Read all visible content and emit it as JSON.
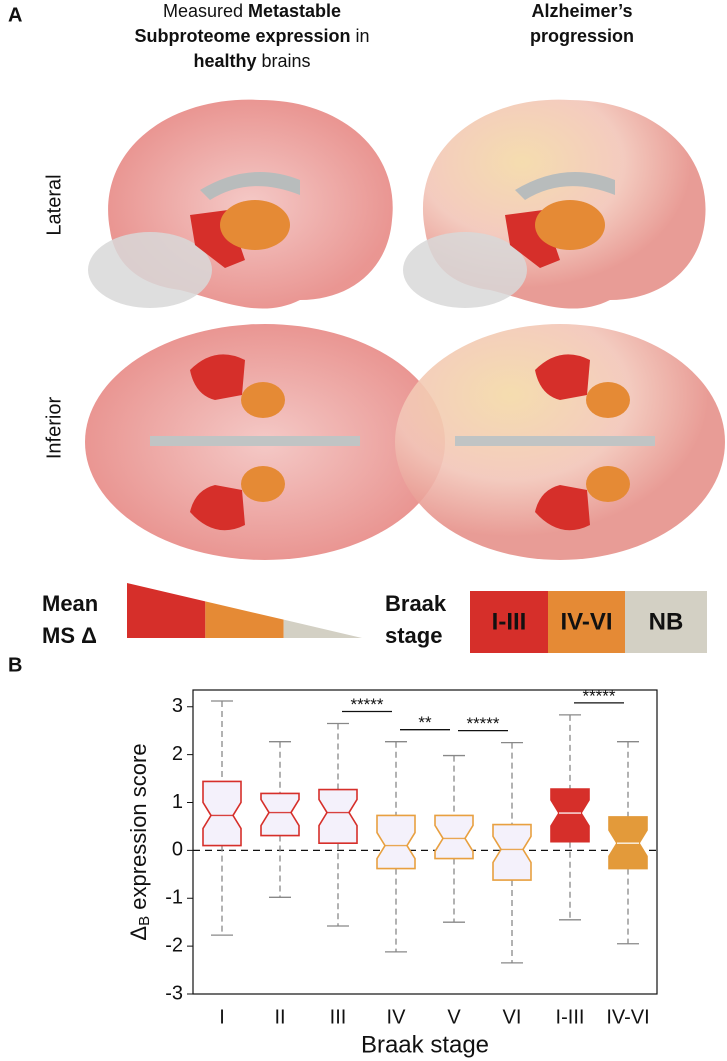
{
  "panel_a": {
    "label": "A",
    "left_title": [
      [
        {
          "text": "Measured ",
          "bold": false
        },
        {
          "text": "Metastable",
          "bold": true
        }
      ],
      [
        {
          "text": "Subproteome expression",
          "bold": true
        },
        {
          "text": " in",
          "bold": false
        }
      ],
      [
        {
          "text": "healthy",
          "bold": true
        },
        {
          "text": " brains",
          "bold": false
        }
      ]
    ],
    "right_title": [
      "Alzheimer’s",
      "progression"
    ],
    "row_labels": [
      "Lateral",
      "Inferior"
    ],
    "legend_left": {
      "lines": [
        "Mean",
        "MS Δ"
      ],
      "colors": [
        "#d62f2a",
        "#e58a35",
        "#d3d0c4"
      ]
    },
    "legend_right": {
      "lines": [
        "Braak",
        "stage"
      ],
      "stages": [
        {
          "label": "I-III",
          "color": "#d62f2a",
          "text_color": "#ffffff"
        },
        {
          "label": "IV-VI",
          "color": "#e58a35",
          "text_color": "#111111"
        },
        {
          "label": "NB",
          "color": "#d3d0c4",
          "text_color": "#111111"
        }
      ]
    }
  },
  "chart_data": {
    "type": "box",
    "panel_label": "B",
    "categories": [
      "I",
      "II",
      "III",
      "IV",
      "V",
      "VI",
      "I-III",
      "IV-VI"
    ],
    "whisker_high": [
      3.12,
      2.27,
      2.65,
      2.27,
      1.98,
      2.25,
      2.83,
      2.27
    ],
    "q3": [
      1.44,
      1.19,
      1.27,
      0.73,
      0.73,
      0.54,
      1.28,
      0.7
    ],
    "median": [
      0.73,
      0.79,
      0.79,
      0.1,
      0.25,
      0.02,
      0.78,
      0.15
    ],
    "q1": [
      0.1,
      0.31,
      0.15,
      -0.38,
      -0.17,
      -0.62,
      0.18,
      -0.38
    ],
    "whisker_low": [
      -1.77,
      -0.98,
      -1.58,
      -2.12,
      -1.5,
      -2.35,
      -1.45,
      -1.95
    ],
    "fills": [
      "#f4f1fb",
      "#f4f1fb",
      "#f4f1fb",
      "#f4f1fb",
      "#f4f1fb",
      "#f4f1fb",
      "#d62f2a",
      "#e39a3a"
    ],
    "strokes": [
      "#d62f2a",
      "#d62f2a",
      "#d62f2a",
      "#e8a040",
      "#e8a040",
      "#e8a040",
      "#d62f2a",
      "#e39a3a"
    ],
    "significance": [
      {
        "from": 2,
        "to": 3,
        "label": "*****"
      },
      {
        "from": 3,
        "to": 4,
        "label": "**"
      },
      {
        "from": 4,
        "to": 5,
        "label": "*****"
      },
      {
        "from": 6,
        "to": 7,
        "label": "*****"
      }
    ],
    "reference_line": 0,
    "ylim": [
      -3,
      3.35
    ],
    "yticks": [
      -3,
      -2,
      -1,
      0,
      1,
      2,
      3
    ],
    "ylabel": {
      "symbol": "Δ",
      "subscript": "B",
      "text": " expression score"
    },
    "xlabel": "Braak stage"
  }
}
